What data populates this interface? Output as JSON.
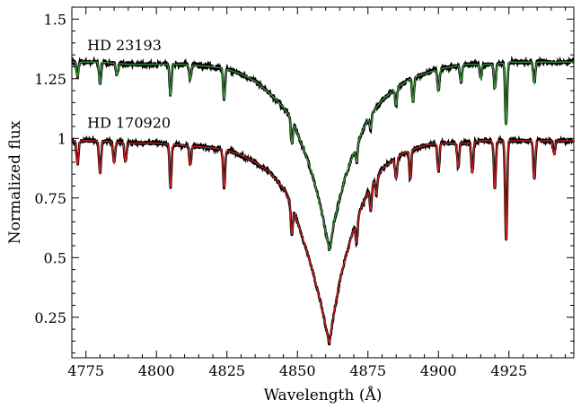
{
  "chart_data": {
    "type": "line",
    "xlabel": "Wavelength (Å)",
    "ylabel": "Normalized flux",
    "xlim": [
      4770,
      4948
    ],
    "ylim": [
      0.08,
      1.55
    ],
    "x_ticks": [
      4775,
      4800,
      4825,
      4850,
      4875,
      4900,
      4925
    ],
    "x_tick_labels": [
      "4775",
      "4800",
      "4825",
      "4850",
      "4875",
      "4900",
      "4925"
    ],
    "y_ticks": [
      0.25,
      0.5,
      0.75,
      1,
      1.25,
      1.5
    ],
    "y_tick_labels": [
      "0.25",
      "0.5",
      "0.75",
      "1",
      "1.25",
      "1.5"
    ],
    "grid": false,
    "legend": "none",
    "annotations": [
      {
        "text": "HD 23193",
        "x": 4771,
        "y": 1.37
      },
      {
        "text": "HD 170920",
        "x": 4771,
        "y": 1.045
      }
    ],
    "series": [
      {
        "name": "HD 23193",
        "observed_color": "#000000",
        "model_color": "#3a9a3a",
        "continuum": 1.32,
        "x": [
          4770,
          4780,
          4790,
          4800,
          4810,
          4820,
          4825,
          4830,
          4835,
          4840,
          4845,
          4848,
          4850,
          4853,
          4855,
          4857,
          4859,
          4861.3,
          4863,
          4865,
          4867,
          4870,
          4873,
          4876,
          4880,
          4885,
          4890,
          4895,
          4900,
          4905,
          4910,
          4915,
          4920,
          4925,
          4930,
          4935,
          4940,
          4948
        ],
        "y": [
          1.32,
          1.32,
          1.31,
          1.31,
          1.31,
          1.3,
          1.29,
          1.27,
          1.24,
          1.19,
          1.13,
          1.08,
          1.02,
          0.93,
          0.86,
          0.77,
          0.67,
          0.53,
          0.65,
          0.75,
          0.84,
          0.94,
          1.03,
          1.1,
          1.16,
          1.21,
          1.25,
          1.27,
          1.29,
          1.3,
          1.31,
          1.31,
          1.31,
          1.32,
          1.32,
          1.32,
          1.32,
          1.32
        ],
        "absorption_lines": [
          {
            "x": 4772,
            "depth": 0.06
          },
          {
            "x": 4780,
            "depth": 0.09
          },
          {
            "x": 4786,
            "depth": 0.05
          },
          {
            "x": 4805,
            "depth": 0.13
          },
          {
            "x": 4812,
            "depth": 0.06
          },
          {
            "x": 4824,
            "depth": 0.13
          },
          {
            "x": 4848,
            "depth": 0.1
          },
          {
            "x": 4871,
            "depth": 0.07
          },
          {
            "x": 4876,
            "depth": 0.06
          },
          {
            "x": 4885,
            "depth": 0.07
          },
          {
            "x": 4891,
            "depth": 0.1
          },
          {
            "x": 4900,
            "depth": 0.09
          },
          {
            "x": 4908,
            "depth": 0.07
          },
          {
            "x": 4915,
            "depth": 0.06
          },
          {
            "x": 4920,
            "depth": 0.1
          },
          {
            "x": 4924,
            "depth": 0.26
          },
          {
            "x": 4934,
            "depth": 0.09
          }
        ]
      },
      {
        "name": "HD 170920",
        "observed_color": "#000000",
        "model_color": "#d42020",
        "continuum": 0.99,
        "x": [
          4770,
          4780,
          4790,
          4800,
          4810,
          4820,
          4825,
          4830,
          4835,
          4840,
          4845,
          4848,
          4850,
          4853,
          4855,
          4857,
          4859,
          4861.3,
          4863,
          4865,
          4867,
          4870,
          4873,
          4876,
          4880,
          4885,
          4890,
          4895,
          4900,
          4905,
          4910,
          4915,
          4920,
          4925,
          4930,
          4935,
          4940,
          4948
        ],
        "y": [
          0.99,
          0.99,
          0.98,
          0.98,
          0.97,
          0.96,
          0.95,
          0.93,
          0.9,
          0.86,
          0.79,
          0.72,
          0.65,
          0.54,
          0.46,
          0.37,
          0.27,
          0.14,
          0.27,
          0.4,
          0.5,
          0.62,
          0.72,
          0.8,
          0.87,
          0.92,
          0.95,
          0.97,
          0.98,
          0.98,
          0.98,
          0.99,
          0.99,
          0.99,
          0.99,
          0.99,
          0.99,
          0.99
        ],
        "absorption_lines": [
          {
            "x": 4772,
            "depth": 0.1
          },
          {
            "x": 4780,
            "depth": 0.14
          },
          {
            "x": 4785,
            "depth": 0.09
          },
          {
            "x": 4789,
            "depth": 0.08
          },
          {
            "x": 4805,
            "depth": 0.18
          },
          {
            "x": 4812,
            "depth": 0.08
          },
          {
            "x": 4824,
            "depth": 0.16
          },
          {
            "x": 4848,
            "depth": 0.12
          },
          {
            "x": 4871,
            "depth": 0.09
          },
          {
            "x": 4876,
            "depth": 0.1
          },
          {
            "x": 4878,
            "depth": 0.07
          },
          {
            "x": 4885,
            "depth": 0.09
          },
          {
            "x": 4890,
            "depth": 0.12
          },
          {
            "x": 4900,
            "depth": 0.12
          },
          {
            "x": 4907,
            "depth": 0.1
          },
          {
            "x": 4912,
            "depth": 0.13
          },
          {
            "x": 4920,
            "depth": 0.2
          },
          {
            "x": 4924,
            "depth": 0.42
          },
          {
            "x": 4934,
            "depth": 0.16
          },
          {
            "x": 4941,
            "depth": 0.06
          }
        ]
      }
    ]
  }
}
